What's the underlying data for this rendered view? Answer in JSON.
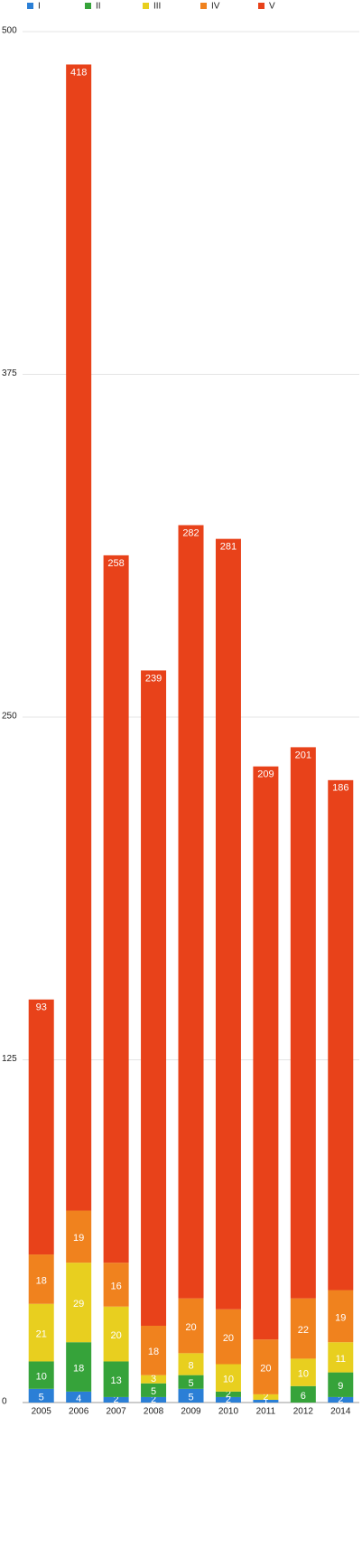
{
  "chart_data": {
    "type": "stacked_bar",
    "categories": [
      "2005",
      "2006",
      "2007",
      "2008",
      "2009",
      "2010",
      "2011",
      "2012",
      "2014"
    ],
    "series": [
      {
        "name": "I",
        "color": "#2b7fd6",
        "values": [
          5,
          4,
          2,
          2,
          5,
          2,
          1,
          0,
          2
        ]
      },
      {
        "name": "II",
        "color": "#36a33a",
        "values": [
          10,
          18,
          13,
          5,
          5,
          2,
          0,
          6,
          9
        ]
      },
      {
        "name": "III",
        "color": "#e8cf1f",
        "values": [
          21,
          29,
          20,
          3,
          8,
          10,
          2,
          10,
          11
        ]
      },
      {
        "name": "IV",
        "color": "#f0821e",
        "values": [
          18,
          19,
          16,
          18,
          20,
          20,
          20,
          22,
          19
        ]
      },
      {
        "name": "V",
        "color": "#e8421a",
        "values": [
          93,
          418,
          258,
          239,
          282,
          281,
          209,
          201,
          186
        ]
      }
    ],
    "ylim": [
      0,
      500
    ],
    "yticks": [
      0,
      125,
      250,
      375,
      500
    ],
    "grid": true
  }
}
